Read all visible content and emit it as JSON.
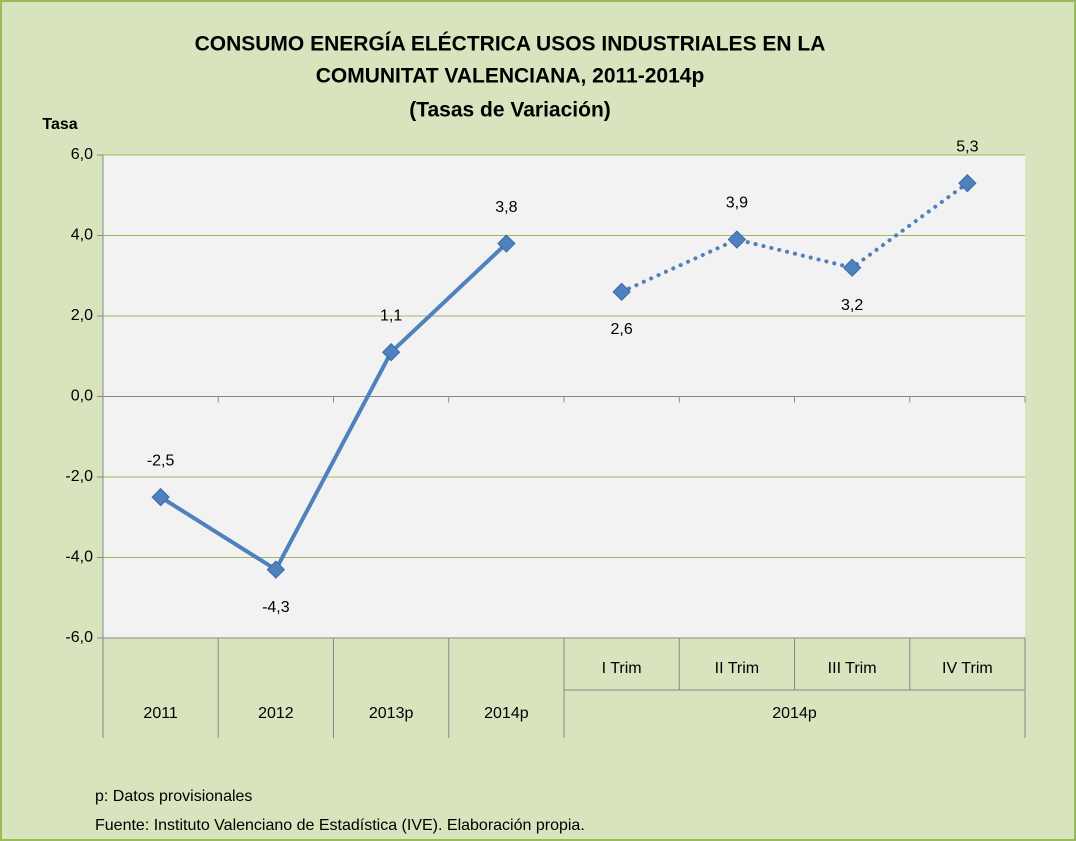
{
  "chart_data": {
    "type": "line",
    "title": [
      "CONSUMO ENERGÍA ELÉCTRICA USOS INDUSTRIALES EN LA",
      "COMUNITAT VALENCIANA, 2011-2014p",
      "(Tasas de Variación)"
    ],
    "y_label": "Tasa",
    "categories": [
      "2011",
      "2012",
      "2013p",
      "2014p",
      "I Trim",
      "II Trim",
      "III Trim",
      "IV Trim"
    ],
    "category_groups": [
      {
        "label": "2014p",
        "from": 4,
        "to": 7
      }
    ],
    "series": [
      {
        "color": "#4f81bd",
        "style": "solid",
        "values": [
          -2.5,
          -4.3,
          1.1,
          3.8,
          null,
          null,
          null,
          null
        ],
        "value_labels": [
          "-2,5",
          "-4,3",
          "1,1",
          "3,8",
          null,
          null,
          null,
          null
        ]
      },
      {
        "color": "#4f81bd",
        "style": "dotted",
        "values": [
          null,
          null,
          null,
          null,
          2.6,
          3.9,
          3.2,
          5.3
        ],
        "value_labels": [
          null,
          null,
          null,
          null,
          "2,6",
          "3,9",
          "3,2",
          "5,3"
        ]
      }
    ],
    "ylim": [
      -6,
      6
    ],
    "yticks": [
      {
        "value": -6,
        "label": "-6,0"
      },
      {
        "value": -4,
        "label": "-4,0"
      },
      {
        "value": -2,
        "label": "-2,0"
      },
      {
        "value": 0,
        "label": "0,0"
      },
      {
        "value": 2,
        "label": "2,0"
      },
      {
        "value": 4,
        "label": "4,0"
      },
      {
        "value": 6,
        "label": "6,0"
      }
    ],
    "grid": true,
    "grid_color": "#9bbb59",
    "notes": [
      "p: Datos provisionales",
      "Fuente: Instituto Valenciano de Estadística (IVE). Elaboración propia."
    ]
  }
}
